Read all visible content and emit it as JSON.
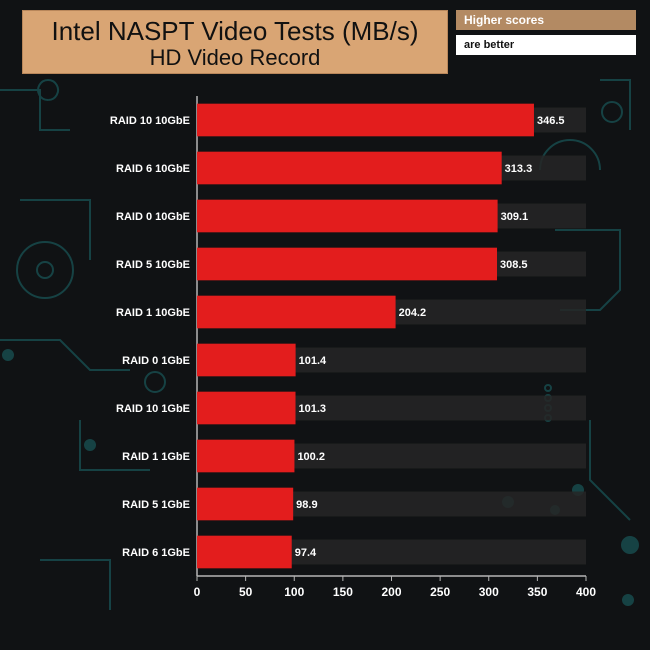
{
  "chart_data": {
    "type": "bar",
    "orientation": "horizontal",
    "title": "Intel NASPT Video Tests (MB/s)",
    "subtitle": "HD Video Record",
    "legend_notes": [
      "Higher scores",
      "are better"
    ],
    "categories": [
      "RAID 10 10GbE",
      "RAID 6 10GbE",
      "RAID 0 10GbE",
      "RAID 5 10GbE",
      "RAID 1 10GbE",
      "RAID 0 1GbE",
      "RAID 10 1GbE",
      "RAID 1 1GbE",
      "RAID 5 1GbE",
      "RAID 6 1GbE"
    ],
    "values": [
      346.5,
      313.3,
      309.1,
      308.5,
      204.2,
      101.4,
      101.3,
      100.2,
      98.9,
      97.4
    ],
    "value_labels": [
      "346.5",
      "313.3",
      "309.1",
      "308.5",
      "204.2",
      "101.4",
      "101.3",
      "100.2",
      "98.9",
      "97.4"
    ],
    "xlim": [
      0,
      400
    ],
    "xticks": [
      "0",
      "50",
      "100",
      "150",
      "200",
      "250",
      "300",
      "350",
      "400"
    ],
    "bar_color": "#e31d1d",
    "grid": false
  }
}
